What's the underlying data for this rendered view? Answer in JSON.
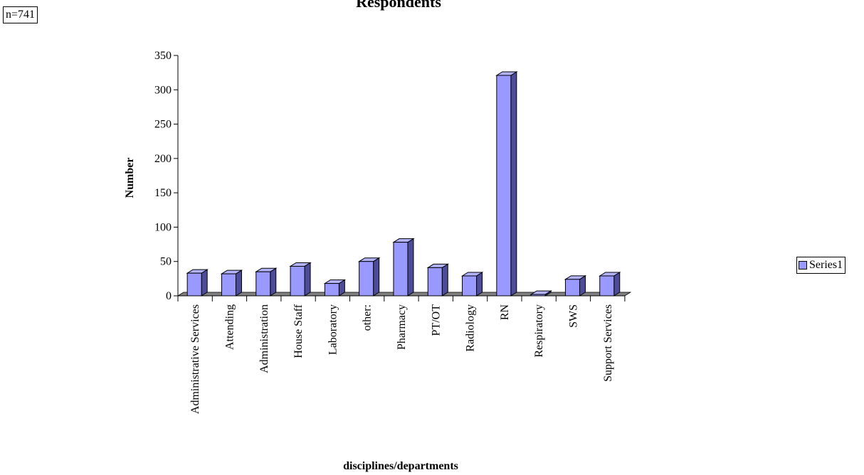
{
  "sample_note": "n=741",
  "colors": {
    "bar_front": "#9999ff",
    "bar_side": "#4c4c99",
    "bar_top": "#b3b3ff",
    "floor": "#808080",
    "axis": "#000000"
  },
  "legend": {
    "series_label": "Series1"
  },
  "chart_data": {
    "type": "bar",
    "title": "Respondents",
    "xlabel": "disciplines/departments",
    "ylabel": "Number",
    "ylim": [
      0,
      350
    ],
    "yticks": [
      0,
      50,
      100,
      150,
      200,
      250,
      300,
      350
    ],
    "grid": false,
    "legend_position": "right",
    "categories": [
      "Administrative Services",
      "Attending",
      "Administration",
      "House Staff",
      "Laboratory",
      "other:",
      "Pharmacy",
      "PT/OT",
      "Radiology",
      "RN",
      "Respiratory",
      "SWS",
      "Support Services"
    ],
    "series": [
      {
        "name": "Series1",
        "values": [
          33,
          32,
          35,
          43,
          18,
          50,
          78,
          41,
          29,
          321,
          2,
          24,
          29
        ]
      }
    ]
  }
}
